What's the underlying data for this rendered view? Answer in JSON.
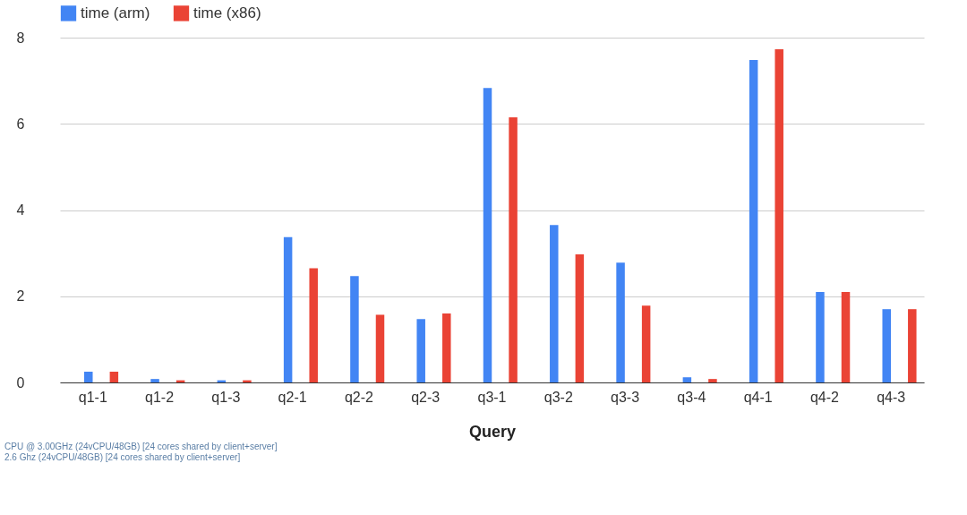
{
  "chart_data": {
    "type": "bar",
    "xlabel": "Query",
    "categories": [
      "q1-1",
      "q1-2",
      "q1-3",
      "q2-1",
      "q2-2",
      "q2-3",
      "q3-1",
      "q3-2",
      "q3-3",
      "q3-4",
      "q4-1",
      "q4-2",
      "q4-3"
    ],
    "series": [
      {
        "name": "time (arm)",
        "color": "#4285f4",
        "values": [
          0.25,
          0.08,
          0.05,
          3.37,
          2.47,
          1.47,
          6.83,
          3.65,
          2.78,
          0.12,
          7.48,
          2.1,
          1.7
        ]
      },
      {
        "name": "time (x86)",
        "color": "#ea4335",
        "values": [
          0.25,
          0.05,
          0.05,
          2.65,
          1.57,
          1.6,
          6.15,
          2.97,
          1.78,
          0.08,
          7.73,
          2.1,
          1.7
        ]
      }
    ],
    "ylim": [
      0,
      8
    ],
    "yticks": [
      0,
      2,
      4,
      6,
      8
    ],
    "grid": "y",
    "legend": "top",
    "annotations": [
      "CPU @ 3.00GHz (24vCPU/48GB) [24 cores shared by client+server]",
      "2.6 Ghz  (24vCPU/48GB)  [24 cores shared by client+server]"
    ]
  }
}
